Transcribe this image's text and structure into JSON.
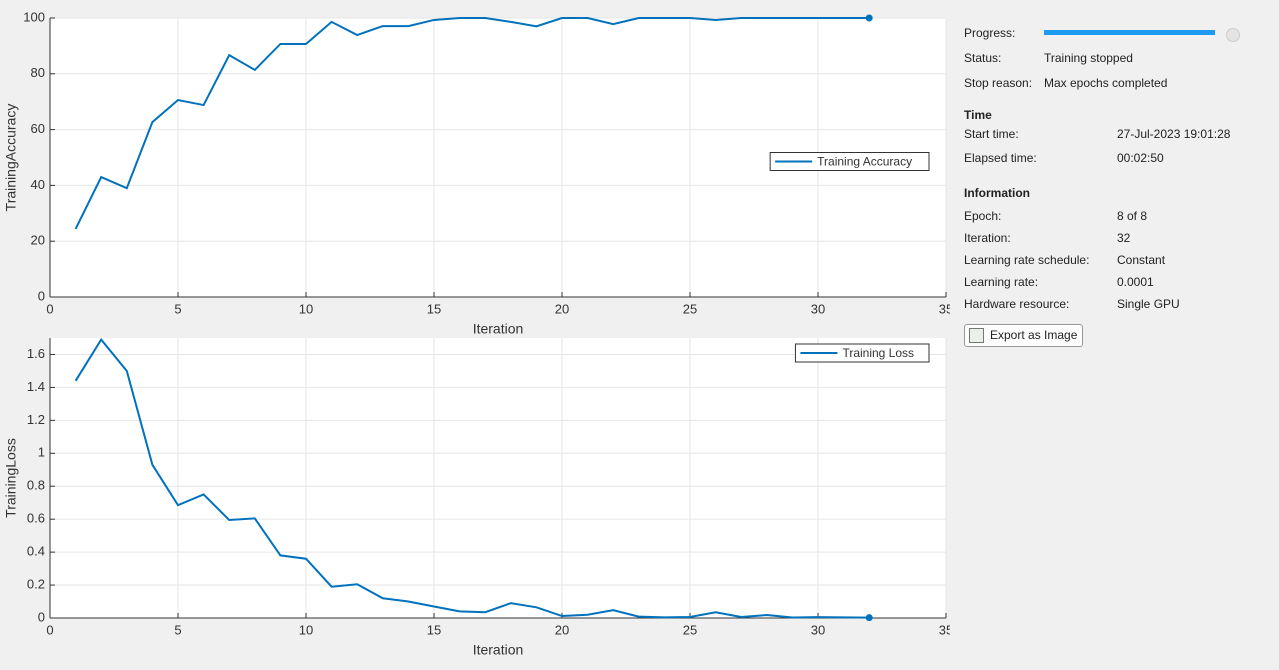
{
  "chart_data": [
    {
      "type": "line",
      "xlabel": "Iteration",
      "ylabel": "TrainingAccuracy",
      "x": [
        1,
        2,
        3,
        4,
        5,
        6,
        7,
        8,
        9,
        10,
        11,
        12,
        13,
        14,
        15,
        16,
        17,
        18,
        19,
        20,
        21,
        22,
        23,
        24,
        25,
        26,
        27,
        28,
        29,
        30,
        31,
        32
      ],
      "series": [
        {
          "name": "Training Accuracy",
          "color": "#0072bd",
          "values": [
            24.4,
            43,
            39,
            62.7,
            70.6,
            68.8,
            86.7,
            81.4,
            90.7,
            90.7,
            98.6,
            93.9,
            97.1,
            97.1,
            99.3,
            100,
            100,
            98.6,
            97,
            100,
            100,
            97.8,
            100,
            100,
            100,
            99.3,
            100,
            100,
            100,
            100,
            100,
            100
          ]
        }
      ],
      "xlim": [
        0,
        35
      ],
      "xticks": [
        0,
        5,
        10,
        15,
        20,
        25,
        30,
        35
      ],
      "ylim": [
        0,
        100
      ],
      "yticks": [
        0,
        20,
        40,
        60,
        80,
        100
      ],
      "grid": true,
      "legend": "east"
    },
    {
      "type": "line",
      "xlabel": "Iteration",
      "ylabel": "TrainingLoss",
      "x": [
        1,
        2,
        3,
        4,
        5,
        6,
        7,
        8,
        9,
        10,
        11,
        12,
        13,
        14,
        15,
        16,
        17,
        18,
        19,
        20,
        21,
        22,
        23,
        24,
        25,
        26,
        27,
        28,
        29,
        30,
        31,
        32
      ],
      "series": [
        {
          "name": "Training Loss",
          "color": "#0072bd",
          "values": [
            1.44,
            1.69,
            1.5,
            0.93,
            0.685,
            0.75,
            0.595,
            0.605,
            0.38,
            0.36,
            0.19,
            0.205,
            0.12,
            0.1,
            0.07,
            0.04,
            0.035,
            0.09,
            0.065,
            0.012,
            0.02,
            0.048,
            0.008,
            0.004,
            0.006,
            0.035,
            0.006,
            0.018,
            0.003,
            0.005,
            0.004,
            0.002
          ]
        }
      ],
      "xlim": [
        0,
        35
      ],
      "xticks": [
        0,
        5,
        10,
        15,
        20,
        25,
        30,
        35
      ],
      "ylim": [
        0,
        1.7
      ],
      "yticks": [
        0,
        0.2,
        0.4,
        0.6,
        0.8,
        1,
        1.2,
        1.4,
        1.6
      ],
      "grid": true,
      "legend": "northeast"
    }
  ],
  "panel": {
    "progress_label": "Progress:",
    "status": {
      "label": "Status:",
      "value": "Training stopped"
    },
    "stop_reason": {
      "label": "Stop reason:",
      "value": "Max epochs completed"
    },
    "time_heading": "Time",
    "time_rows": [
      {
        "label": "Start time:",
        "value": "27-Jul-2023 19:01:28"
      },
      {
        "label": "Elapsed time:",
        "value": "00:02:50"
      }
    ],
    "info_heading": "Information",
    "info_rows": [
      {
        "label": "Epoch:",
        "value": "8 of 8"
      },
      {
        "label": "Iteration:",
        "value": "32"
      },
      {
        "label": "Learning rate schedule:",
        "value": "Constant"
      },
      {
        "label": "Learning rate:",
        "value": "0.0001"
      },
      {
        "label": "Hardware resource:",
        "value": "Single GPU"
      }
    ],
    "export_button": "Export as Image"
  }
}
